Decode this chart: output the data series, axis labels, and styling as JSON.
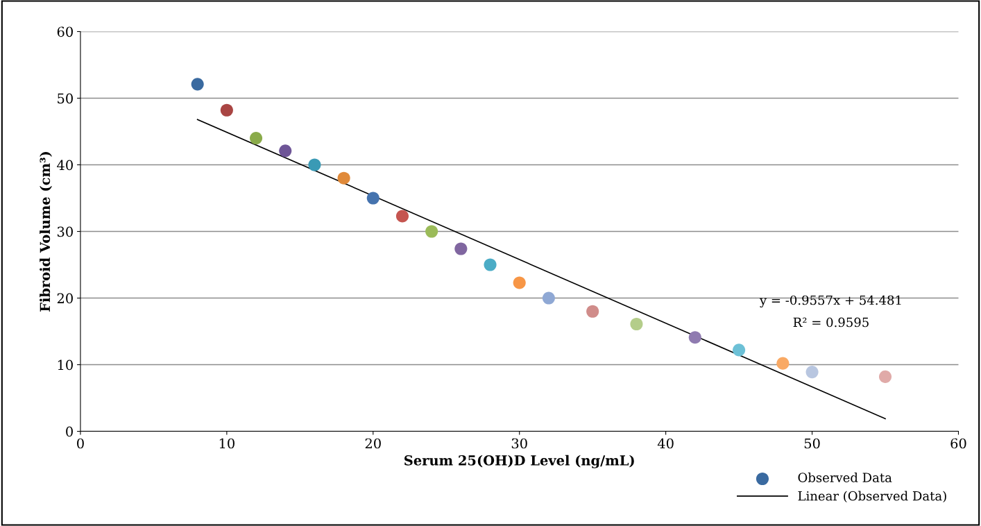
{
  "chart_data": {
    "type": "scatter",
    "xlabel": "Serum 25(OH)D Level (ng/mL)",
    "ylabel": "Fibroid Volume (cm³)",
    "xlim": [
      0,
      60
    ],
    "xticks": [
      0,
      10,
      20,
      30,
      40,
      50,
      60
    ],
    "ylim": [
      0,
      60
    ],
    "yticks": [
      0,
      10,
      20,
      30,
      40,
      50,
      60
    ],
    "grid": "y",
    "legend": "bottom right",
    "annotations": [
      "y = -0.9557x + 54.481",
      "R² = 0.9595"
    ],
    "series": [
      {
        "name": "Observed Data",
        "marker": "circle",
        "color": "#4573ae",
        "x": [
          8,
          10,
          12,
          14,
          16,
          18,
          20,
          22,
          24,
          26,
          28,
          30,
          32,
          35,
          38,
          42,
          45,
          48,
          50,
          55
        ],
        "values": [
          52.1,
          48.2,
          44,
          42.1,
          40,
          38,
          35,
          32.3,
          30,
          27.4,
          25,
          22.3,
          20,
          18,
          16.1,
          14.1,
          12.2,
          10.2,
          8.9,
          8.2
        ],
        "colors": [
          "#3a6aa0",
          "#a94543",
          "#8aab4a",
          "#6e5597",
          "#3a9ab5",
          "#e08a3a",
          "#4573ae",
          "#c55550",
          "#9bbb59",
          "#8066a0",
          "#4bacc6",
          "#f79646",
          "#8fa8d4",
          "#d08c8a",
          "#b4cd8a",
          "#8f7bb0",
          "#6cc0d6",
          "#f9a964",
          "#b8c6e0",
          "#e0aaa8"
        ]
      },
      {
        "name": "Linear (Observed Data)",
        "type": "line",
        "color": "#000000",
        "x": [
          8,
          55
        ],
        "values": [
          46.8,
          1.9
        ]
      }
    ]
  }
}
